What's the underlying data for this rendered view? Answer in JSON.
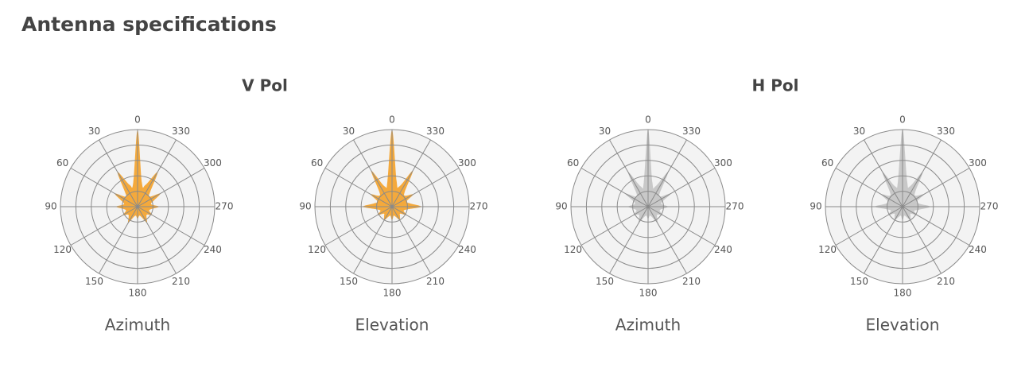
{
  "title": "Antenna specifications",
  "groups": [
    {
      "title": "V Pol",
      "charts": [
        {
          "type": "polar",
          "label": "Azimuth",
          "color": "#f4a93c",
          "thetaticks": [
            0,
            30,
            60,
            90,
            120,
            150,
            180,
            210,
            240,
            270,
            300,
            330
          ],
          "rlim": [
            0,
            5
          ],
          "rticks": [
            1,
            2,
            3,
            4,
            5
          ],
          "theta": [
            0,
            10,
            20,
            30,
            40,
            50,
            60,
            70,
            80,
            90,
            100,
            110,
            120,
            130,
            140,
            150,
            160,
            170,
            180,
            190,
            200,
            210,
            220,
            230,
            240,
            250,
            260,
            270,
            280,
            290,
            300,
            310,
            320,
            330,
            340,
            350
          ],
          "values": [
            5.0,
            1.6,
            1.5,
            2.6,
            1.3,
            1.0,
            1.7,
            1.1,
            0.9,
            1.4,
            0.9,
            0.8,
            1.1,
            0.8,
            0.9,
            1.2,
            0.7,
            0.6,
            0.8,
            0.6,
            0.7,
            1.2,
            0.9,
            0.8,
            1.1,
            0.8,
            0.9,
            1.4,
            0.9,
            1.1,
            1.7,
            1.0,
            1.3,
            2.6,
            1.5,
            1.6
          ]
        },
        {
          "type": "polar",
          "label": "Elevation",
          "color": "#f4a93c",
          "thetaticks": [
            0,
            30,
            60,
            90,
            120,
            150,
            180,
            210,
            240,
            270,
            300,
            330
          ],
          "rlim": [
            0,
            5
          ],
          "rticks": [
            1,
            2,
            3,
            4,
            5
          ],
          "theta": [
            0,
            10,
            20,
            30,
            40,
            50,
            60,
            70,
            80,
            90,
            100,
            110,
            120,
            130,
            140,
            150,
            160,
            170,
            180,
            190,
            200,
            210,
            220,
            230,
            240,
            250,
            260,
            270,
            280,
            290,
            300,
            310,
            320,
            330,
            340,
            350
          ],
          "values": [
            5.0,
            1.7,
            1.4,
            2.7,
            1.3,
            1.1,
            1.6,
            1.0,
            1.2,
            1.9,
            1.0,
            0.8,
            1.1,
            0.7,
            0.8,
            1.0,
            0.7,
            0.6,
            0.9,
            0.6,
            0.7,
            1.0,
            0.8,
            0.7,
            1.1,
            0.8,
            1.0,
            1.9,
            1.2,
            1.0,
            1.6,
            1.1,
            1.3,
            2.7,
            1.4,
            1.7
          ]
        }
      ]
    },
    {
      "title": "H Pol",
      "charts": [
        {
          "type": "polar",
          "label": "Azimuth",
          "color": "#c8c8c8",
          "thetaticks": [
            0,
            30,
            60,
            90,
            120,
            150,
            180,
            210,
            240,
            270,
            300,
            330
          ],
          "rlim": [
            0,
            5
          ],
          "rticks": [
            1,
            2,
            3,
            4,
            5
          ],
          "theta": [
            0,
            10,
            20,
            30,
            40,
            50,
            60,
            70,
            80,
            90,
            100,
            110,
            120,
            130,
            140,
            150,
            160,
            170,
            180,
            190,
            200,
            210,
            220,
            230,
            240,
            250,
            260,
            270,
            280,
            290,
            300,
            310,
            320,
            330,
            340,
            350
          ],
          "values": [
            5.0,
            1.6,
            1.4,
            2.6,
            1.2,
            1.0,
            1.7,
            1.0,
            0.9,
            1.3,
            0.9,
            0.8,
            1.1,
            0.8,
            0.9,
            1.2,
            0.7,
            0.6,
            0.8,
            0.6,
            0.7,
            1.2,
            0.9,
            0.8,
            1.1,
            0.8,
            0.9,
            1.3,
            0.9,
            1.0,
            1.7,
            1.0,
            1.2,
            2.6,
            1.4,
            1.6
          ]
        },
        {
          "type": "polar",
          "label": "Elevation",
          "color": "#c8c8c8",
          "thetaticks": [
            0,
            30,
            60,
            90,
            120,
            150,
            180,
            210,
            240,
            270,
            300,
            330
          ],
          "rlim": [
            0,
            5
          ],
          "rticks": [
            1,
            2,
            3,
            4,
            5
          ],
          "theta": [
            0,
            10,
            20,
            30,
            40,
            50,
            60,
            70,
            80,
            90,
            100,
            110,
            120,
            130,
            140,
            150,
            160,
            170,
            180,
            190,
            200,
            210,
            220,
            230,
            240,
            250,
            260,
            270,
            280,
            290,
            300,
            310,
            320,
            330,
            340,
            350
          ],
          "values": [
            5.0,
            1.7,
            1.4,
            2.6,
            1.3,
            1.1,
            1.6,
            1.0,
            1.1,
            1.8,
            1.0,
            0.8,
            1.1,
            0.7,
            0.8,
            1.0,
            0.7,
            0.6,
            0.9,
            0.6,
            0.7,
            1.0,
            0.8,
            0.7,
            1.1,
            0.8,
            1.1,
            1.8,
            1.1,
            1.0,
            1.6,
            1.1,
            1.3,
            2.6,
            1.4,
            1.7
          ]
        }
      ]
    }
  ]
}
